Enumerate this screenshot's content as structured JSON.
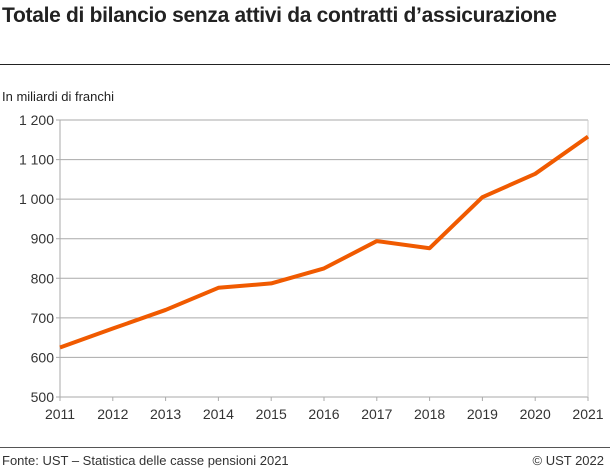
{
  "header": {
    "title": "Totale di bilancio senza attivi da contratti d’assicurazione"
  },
  "footer": {
    "source": "Fonte: UST – Statistica delle casse pensioni 2021",
    "copyright": "© UST 2022"
  },
  "chart_data": {
    "type": "line",
    "title": "Totale di bilancio senza attivi da contratti d’assicurazione",
    "ylabel": "In miliardi di franchi",
    "xlabel": "",
    "x": [
      2011,
      2012,
      2013,
      2014,
      2015,
      2016,
      2017,
      2018,
      2019,
      2020,
      2021
    ],
    "series": [
      {
        "values": [
          625,
          673,
          720,
          776,
          787,
          825,
          894,
          876,
          1005,
          1064,
          1158
        ],
        "color": "#f05a00"
      }
    ],
    "ylim": [
      500,
      1200
    ],
    "yticks": [
      500,
      600,
      700,
      800,
      900,
      1000,
      1100,
      1200
    ],
    "ytick_labels": [
      "500",
      "600",
      "700",
      "800",
      "900",
      "1 000",
      "1 100",
      "1 200"
    ],
    "grid": true
  }
}
